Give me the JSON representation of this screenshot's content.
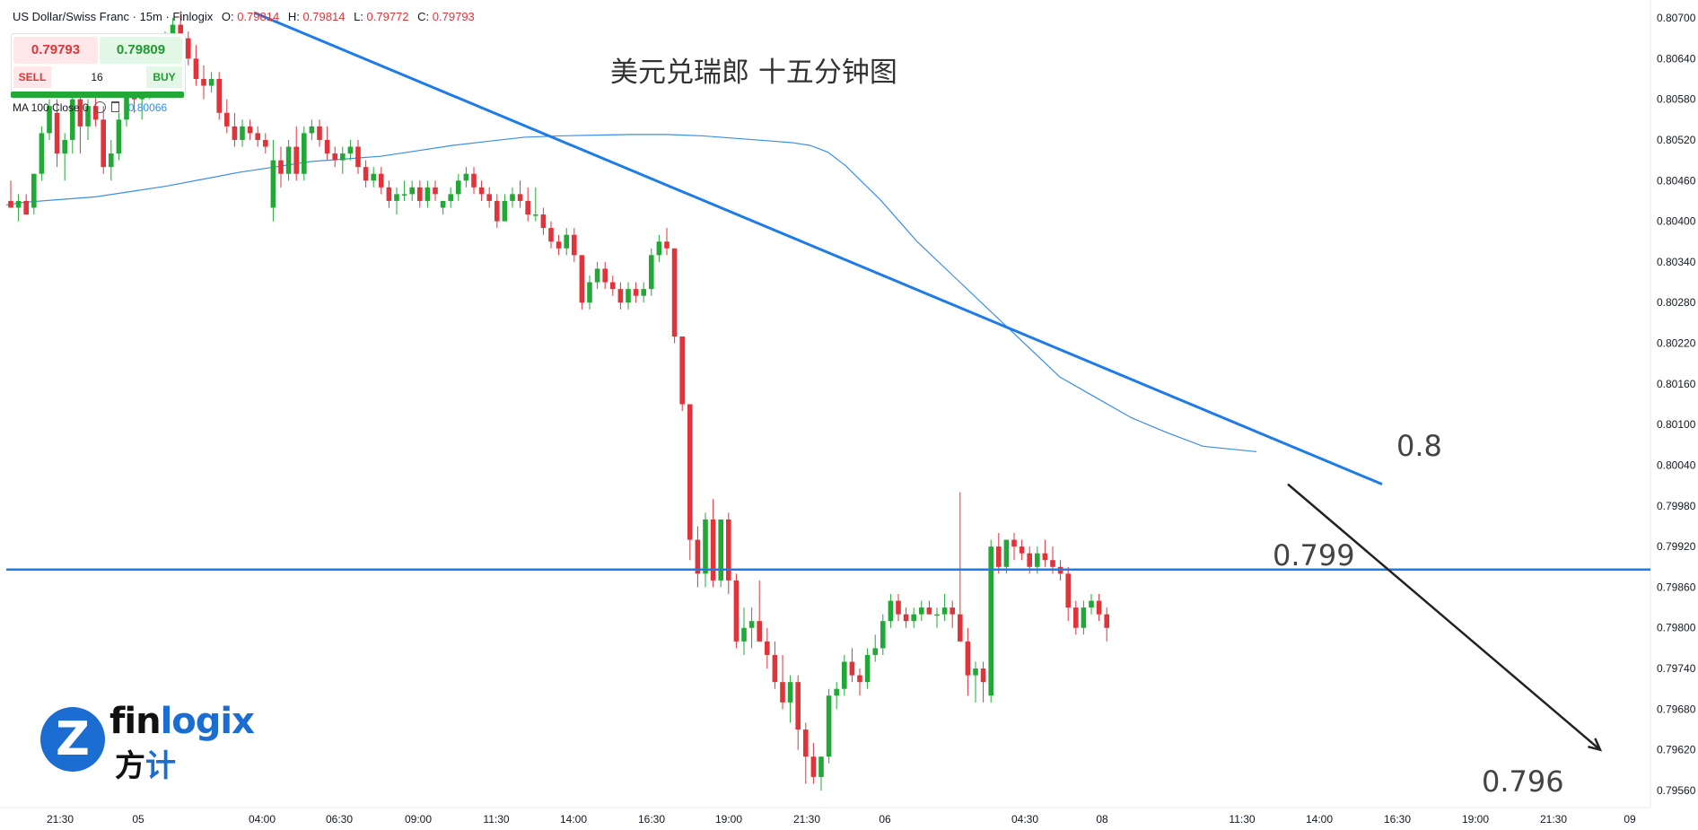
{
  "header": {
    "symbol": "US Dollar/Swiss Franc · 15m · Finlogix",
    "open_label": "O:",
    "open": "0.79814",
    "high_label": "H:",
    "high": "0.79814",
    "low_label": "L:",
    "low": "0.79772",
    "close_label": "C:",
    "close": "0.79793"
  },
  "trade_panel": {
    "sell_price": "0.79793",
    "buy_price": "0.79809",
    "sell_label": "SELL",
    "buy_label": "BUY",
    "quantity": "16"
  },
  "indicator": {
    "label": "MA 100 Close 0",
    "value": "0.80066"
  },
  "annotations": {
    "title": "美元兑瑞郎 十五分钟图",
    "level_upper": "0.8",
    "level_mid": "0.799",
    "level_target": "0.796"
  },
  "logo": {
    "brand_part1": "fin",
    "brand_part2": "logix",
    "cn_part1": "方",
    "cn_part2": "计",
    "mark": "Z"
  },
  "colors": {
    "up": "#22a836",
    "down": "#e0333a",
    "trendline": "#1e7ce8",
    "ma": "#3a8ee8",
    "arrow": "#222222"
  },
  "chart_data": {
    "type": "candlestick",
    "y_axis": {
      "range": [
        0.7953,
        0.8071
      ],
      "ticks": [
        "0.80700",
        "0.80640",
        "0.80580",
        "0.80520",
        "0.80460",
        "0.80400",
        "0.80340",
        "0.80280",
        "0.80220",
        "0.80160",
        "0.80100",
        "0.80040",
        "0.79980",
        "0.79920",
        "0.79860",
        "0.79800",
        "0.79740",
        "0.79680",
        "0.79620",
        "0.79560"
      ]
    },
    "x_axis": {
      "ticks": [
        "21:30",
        "05",
        "04:00",
        "06:30",
        "09:00",
        "11:30",
        "14:00",
        "16:30",
        "19:00",
        "21:30",
        "06",
        "04:30",
        "08",
        "11:30",
        "14:00",
        "16:30",
        "19:00",
        "21:30",
        "09"
      ]
    },
    "candles": [
      [
        0.8043,
        0.8046,
        0.8042,
        0.8042
      ],
      [
        0.8042,
        0.8044,
        0.804,
        0.8043
      ],
      [
        0.8043,
        0.8044,
        0.8041,
        0.8041
      ],
      [
        0.8042,
        0.8047,
        0.8041,
        0.8047
      ],
      [
        0.8047,
        0.8054,
        0.8046,
        0.8053
      ],
      [
        0.8053,
        0.8058,
        0.8052,
        0.8057
      ],
      [
        0.8056,
        0.8058,
        0.8048,
        0.805
      ],
      [
        0.805,
        0.8053,
        0.8046,
        0.8052
      ],
      [
        0.8052,
        0.806,
        0.805,
        0.8058
      ],
      [
        0.8058,
        0.8059,
        0.805,
        0.8054
      ],
      [
        0.8054,
        0.8058,
        0.8052,
        0.8057
      ],
      [
        0.8057,
        0.806,
        0.8054,
        0.8055
      ],
      [
        0.8055,
        0.8057,
        0.8047,
        0.8048
      ],
      [
        0.8048,
        0.8052,
        0.8046,
        0.805
      ],
      [
        0.805,
        0.8056,
        0.8049,
        0.8055
      ],
      [
        0.8055,
        0.8061,
        0.8054,
        0.806
      ],
      [
        0.806,
        0.8062,
        0.8056,
        0.8058
      ],
      [
        0.8058,
        0.8062,
        0.8055,
        0.8061
      ],
      [
        0.8061,
        0.8064,
        0.8058,
        0.8063
      ],
      [
        0.8063,
        0.8066,
        0.8061,
        0.8066
      ],
      [
        0.8066,
        0.8068,
        0.8064,
        0.8067
      ],
      [
        0.8067,
        0.807,
        0.8065,
        0.8069
      ],
      [
        0.8069,
        0.8071,
        0.8066,
        0.8067
      ],
      [
        0.8067,
        0.8068,
        0.8063,
        0.8064
      ],
      [
        0.8064,
        0.8066,
        0.806,
        0.8061
      ],
      [
        0.8061,
        0.8063,
        0.8058,
        0.806
      ],
      [
        0.806,
        0.8062,
        0.8059,
        0.8061
      ],
      [
        0.8061,
        0.8062,
        0.8055,
        0.8056
      ],
      [
        0.8056,
        0.8058,
        0.8053,
        0.8054
      ],
      [
        0.8054,
        0.8056,
        0.8051,
        0.8052
      ],
      [
        0.8052,
        0.8055,
        0.8051,
        0.8054
      ],
      [
        0.8054,
        0.8055,
        0.8052,
        0.8053
      ],
      [
        0.8053,
        0.8054,
        0.8051,
        0.8052
      ],
      [
        0.8052,
        0.8053,
        0.805,
        0.8051
      ],
      [
        0.8042,
        0.8052,
        0.804,
        0.8049
      ],
      [
        0.8049,
        0.8051,
        0.8045,
        0.8047
      ],
      [
        0.8047,
        0.8052,
        0.8046,
        0.8051
      ],
      [
        0.8051,
        0.8054,
        0.8046,
        0.8047
      ],
      [
        0.8047,
        0.8054,
        0.8046,
        0.8053
      ],
      [
        0.8053,
        0.8055,
        0.8052,
        0.8054
      ],
      [
        0.8054,
        0.8055,
        0.8051,
        0.8052
      ],
      [
        0.8052,
        0.8054,
        0.8049,
        0.805
      ],
      [
        0.805,
        0.8051,
        0.8048,
        0.8049
      ],
      [
        0.8049,
        0.8051,
        0.8047,
        0.805
      ],
      [
        0.805,
        0.8052,
        0.8049,
        0.8051
      ],
      [
        0.8051,
        0.8052,
        0.8047,
        0.8048
      ],
      [
        0.8048,
        0.8049,
        0.8045,
        0.8046
      ],
      [
        0.8046,
        0.8048,
        0.8045,
        0.8047
      ],
      [
        0.8047,
        0.8048,
        0.8044,
        0.8045
      ],
      [
        0.8045,
        0.8046,
        0.8042,
        0.8043
      ],
      [
        0.8043,
        0.8045,
        0.8041,
        0.8044
      ],
      [
        0.8044,
        0.8046,
        0.8043,
        0.8044
      ],
      [
        0.8044,
        0.8046,
        0.8043,
        0.8045
      ],
      [
        0.8045,
        0.8046,
        0.8042,
        0.8043
      ],
      [
        0.8043,
        0.8046,
        0.8042,
        0.8045
      ],
      [
        0.8045,
        0.8046,
        0.8043,
        0.8044
      ],
      [
        0.8042,
        0.8043,
        0.8041,
        0.8043
      ],
      [
        0.8043,
        0.8045,
        0.8042,
        0.8044
      ],
      [
        0.8044,
        0.8047,
        0.8043,
        0.8046
      ],
      [
        0.8046,
        0.8048,
        0.8045,
        0.8047
      ],
      [
        0.8047,
        0.8048,
        0.8044,
        0.8045
      ],
      [
        0.8045,
        0.8046,
        0.8043,
        0.8044
      ],
      [
        0.8044,
        0.8045,
        0.8042,
        0.8043
      ],
      [
        0.8043,
        0.8044,
        0.8039,
        0.804
      ],
      [
        0.804,
        0.8044,
        0.804,
        0.8043
      ],
      [
        0.8043,
        0.8045,
        0.8042,
        0.8044
      ],
      [
        0.8044,
        0.8046,
        0.8042,
        0.8043
      ],
      [
        0.8043,
        0.8045,
        0.804,
        0.8041
      ],
      [
        0.8041,
        0.8045,
        0.804,
        0.8041
      ],
      [
        0.8041,
        0.8042,
        0.8038,
        0.8039
      ],
      [
        0.8039,
        0.804,
        0.8036,
        0.8037
      ],
      [
        0.8037,
        0.8038,
        0.8035,
        0.8036
      ],
      [
        0.8036,
        0.8039,
        0.8035,
        0.8038
      ],
      [
        0.8038,
        0.8039,
        0.8034,
        0.8035
      ],
      [
        0.8035,
        0.8035,
        0.8027,
        0.8028
      ],
      [
        0.8028,
        0.8032,
        0.8027,
        0.8031
      ],
      [
        0.8031,
        0.8034,
        0.803,
        0.8033
      ],
      [
        0.8033,
        0.8034,
        0.803,
        0.8031
      ],
      [
        0.8031,
        0.8032,
        0.8029,
        0.803
      ],
      [
        0.803,
        0.8031,
        0.8027,
        0.8028
      ],
      [
        0.8028,
        0.8031,
        0.8027,
        0.803
      ],
      [
        0.803,
        0.8031,
        0.8028,
        0.8029
      ],
      [
        0.8029,
        0.8031,
        0.8028,
        0.803
      ],
      [
        0.803,
        0.8036,
        0.8029,
        0.8035
      ],
      [
        0.8035,
        0.8038,
        0.8034,
        0.8037
      ],
      [
        0.8037,
        0.8039,
        0.8035,
        0.8036
      ],
      [
        0.8036,
        0.8036,
        0.8022,
        0.8023
      ],
      [
        0.8023,
        0.8023,
        0.8012,
        0.8013
      ],
      [
        0.8013,
        0.8013,
        0.799,
        0.7993
      ],
      [
        0.7993,
        0.7995,
        0.7986,
        0.7988
      ],
      [
        0.7988,
        0.7997,
        0.7986,
        0.7996
      ],
      [
        0.7996,
        0.7999,
        0.7986,
        0.7987
      ],
      [
        0.7987,
        0.7996,
        0.7986,
        0.7996
      ],
      [
        0.7996,
        0.7997,
        0.7985,
        0.7987
      ],
      [
        0.7987,
        0.7988,
        0.7977,
        0.7978
      ],
      [
        0.7978,
        0.7983,
        0.7976,
        0.798
      ],
      [
        0.798,
        0.7983,
        0.7977,
        0.7981
      ],
      [
        0.7981,
        0.7987,
        0.7978,
        0.7978
      ],
      [
        0.7978,
        0.798,
        0.7974,
        0.7976
      ],
      [
        0.7976,
        0.7978,
        0.7971,
        0.7972
      ],
      [
        0.7972,
        0.7976,
        0.7968,
        0.7969
      ],
      [
        0.7969,
        0.7973,
        0.7966,
        0.7972
      ],
      [
        0.7972,
        0.7973,
        0.7962,
        0.7965
      ],
      [
        0.7965,
        0.7966,
        0.7957,
        0.7961
      ],
      [
        0.7961,
        0.7963,
        0.7957,
        0.7958
      ],
      [
        0.7958,
        0.7961,
        0.7956,
        0.7961
      ],
      [
        0.7961,
        0.7971,
        0.796,
        0.797
      ],
      [
        0.797,
        0.7972,
        0.7968,
        0.7971
      ],
      [
        0.7971,
        0.7976,
        0.797,
        0.7975
      ],
      [
        0.7975,
        0.7977,
        0.7972,
        0.7973
      ],
      [
        0.7973,
        0.7974,
        0.797,
        0.7972
      ],
      [
        0.7972,
        0.7977,
        0.7971,
        0.7976
      ],
      [
        0.7976,
        0.7979,
        0.7975,
        0.7977
      ],
      [
        0.7977,
        0.7982,
        0.7976,
        0.7981
      ],
      [
        0.7981,
        0.7985,
        0.798,
        0.7984
      ],
      [
        0.7984,
        0.7985,
        0.7981,
        0.7982
      ],
      [
        0.7982,
        0.7983,
        0.798,
        0.7981
      ],
      [
        0.7981,
        0.7983,
        0.798,
        0.7982
      ],
      [
        0.7982,
        0.7984,
        0.7981,
        0.7983
      ],
      [
        0.7983,
        0.7984,
        0.7982,
        0.7982
      ],
      [
        0.7982,
        0.7983,
        0.798,
        0.7982
      ],
      [
        0.7982,
        0.7985,
        0.7981,
        0.7983
      ],
      [
        0.7983,
        0.7984,
        0.798,
        0.7982
      ],
      [
        0.7982,
        0.8,
        0.7978,
        0.7978
      ],
      [
        0.7978,
        0.798,
        0.797,
        0.7973
      ],
      [
        0.7973,
        0.7975,
        0.7969,
        0.7974
      ],
      [
        0.7974,
        0.7975,
        0.7969,
        0.7972
      ],
      [
        0.797,
        0.7993,
        0.7969,
        0.7992
      ],
      [
        0.7992,
        0.7994,
        0.7988,
        0.7989
      ],
      [
        0.7989,
        0.7993,
        0.7988,
        0.7993
      ],
      [
        0.7993,
        0.7994,
        0.799,
        0.7992
      ],
      [
        0.7992,
        0.7993,
        0.799,
        0.7991
      ],
      [
        0.7991,
        0.7992,
        0.7988,
        0.7989
      ],
      [
        0.7989,
        0.7992,
        0.7988,
        0.7991
      ],
      [
        0.7991,
        0.7993,
        0.7989,
        0.799
      ],
      [
        0.799,
        0.7992,
        0.7988,
        0.7989
      ],
      [
        0.7989,
        0.799,
        0.7987,
        0.7988
      ],
      [
        0.7988,
        0.7989,
        0.7981,
        0.7983
      ],
      [
        0.7983,
        0.7984,
        0.7979,
        0.798
      ],
      [
        0.798,
        0.7984,
        0.7979,
        0.7983
      ],
      [
        0.7983,
        0.7985,
        0.7982,
        0.7984
      ],
      [
        0.7984,
        0.7985,
        0.7981,
        0.7982
      ],
      [
        0.7982,
        0.7983,
        0.7978,
        0.798
      ]
    ],
    "ma100": [
      [
        0,
        0.80424
      ],
      [
        20,
        0.80428
      ],
      [
        60,
        0.80432
      ],
      [
        100,
        0.80436
      ],
      [
        140,
        0.80444
      ],
      [
        180,
        0.80452
      ],
      [
        220,
        0.80462
      ],
      [
        260,
        0.80472
      ],
      [
        300,
        0.8048
      ],
      [
        340,
        0.80488
      ],
      [
        380,
        0.80492
      ],
      [
        420,
        0.80496
      ],
      [
        460,
        0.80504
      ],
      [
        500,
        0.80512
      ],
      [
        540,
        0.80518
      ],
      [
        580,
        0.80524
      ],
      [
        620,
        0.80526
      ],
      [
        660,
        0.80527
      ],
      [
        700,
        0.80528
      ],
      [
        740,
        0.80528
      ],
      [
        780,
        0.80526
      ],
      [
        820,
        0.80522
      ],
      [
        860,
        0.80518
      ],
      [
        880,
        0.80516
      ],
      [
        900,
        0.80512
      ],
      [
        920,
        0.80502
      ],
      [
        940,
        0.80482
      ],
      [
        980,
        0.8043
      ],
      [
        1020,
        0.8037
      ],
      [
        1060,
        0.8032
      ],
      [
        1100,
        0.8027
      ],
      [
        1140,
        0.8022
      ],
      [
        1180,
        0.8017
      ],
      [
        1220,
        0.8014
      ],
      [
        1260,
        0.8011
      ],
      [
        1300,
        0.80088
      ],
      [
        1340,
        0.80068
      ],
      [
        1400,
        0.8006
      ]
    ],
    "resistance_line": [
      0.79886,
      0.79886
    ],
    "trend_line": [
      [
        0.80708,
        0
      ],
      [
        0.80012,
        1
      ]
    ],
    "projection": [
      [
        0.80012,
        0.7962
      ]
    ]
  }
}
